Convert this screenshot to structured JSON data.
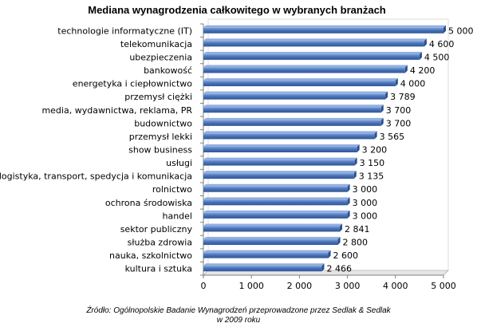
{
  "chart_data": {
    "type": "bar",
    "orientation": "horizontal",
    "title": "Mediana wynagrodzenia  całkowitego  w wybranych  branżach",
    "categories": [
      "technologie informatyczne (IT)",
      "telekomunikacja",
      "ubezpieczenia",
      "bankowość",
      "energetyka i ciepłownictwo",
      "przemysł ciężki",
      "media, wydawnictwa, reklama, PR",
      "budownictwo",
      "przemysł lekki",
      "show business",
      "usługi",
      "logistyka, transport, spedycja i komunikacja",
      "rolnictwo",
      "ochrona środowiska",
      "handel",
      "sektor publiczny",
      "służba zdrowia",
      "nauka, szkolnictwo",
      "kultura i sztuka"
    ],
    "values": [
      5000,
      4600,
      4500,
      4200,
      4000,
      3789,
      3700,
      3700,
      3565,
      3200,
      3150,
      3135,
      3000,
      3000,
      3000,
      2841,
      2800,
      2600,
      2466
    ],
    "value_labels": [
      "5 000",
      "4 600",
      "4 500",
      "4 200",
      "4 000",
      "3 789",
      "3 700",
      "3 700",
      "3 565",
      "3 200",
      "3 150",
      "3 135",
      "3 000",
      "3 000",
      "3 000",
      "2 841",
      "2 800",
      "2 600",
      "2 466"
    ],
    "xlim": [
      0,
      5000
    ],
    "xticks": [
      0,
      1000,
      2000,
      3000,
      4000,
      5000
    ],
    "xtick_labels": [
      "0",
      "1 000",
      "2 000",
      "3 000",
      "4 000",
      "5 000"
    ],
    "xlabel": "",
    "ylabel": "",
    "grid": false,
    "legend": false,
    "bar_color": "#4a72b8"
  },
  "source": {
    "line1": "Źródło: Ogólnopolskie Badanie Wynagrodzeń przeprowadzone przez Sedlak & Sedlak",
    "line2": "w 2009 roku"
  }
}
